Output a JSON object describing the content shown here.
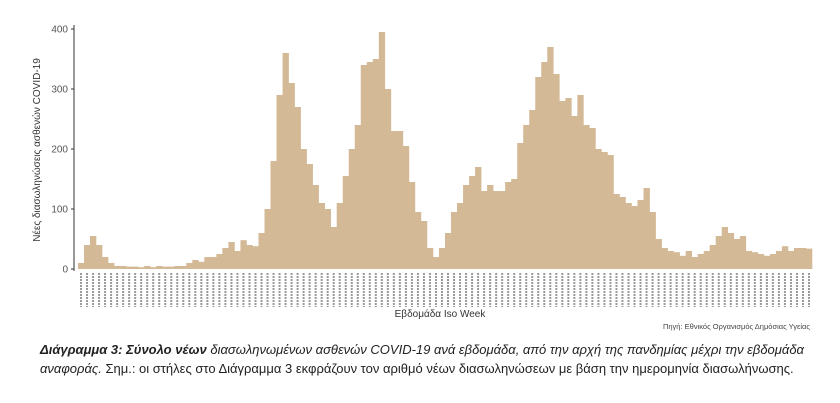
{
  "chart_data": {
    "type": "bar",
    "xlabel": "Εβδομάδα Iso Week",
    "ylabel": "Νέες διασωληνώσεις ασθενών COVID-19",
    "ylim": [
      0,
      400
    ],
    "yticks": [
      0,
      100,
      200,
      300,
      400
    ],
    "grid": false,
    "bar_color": "#d4b996",
    "values": [
      10,
      40,
      55,
      40,
      20,
      10,
      5,
      5,
      4,
      4,
      3,
      5,
      3,
      5,
      4,
      4,
      5,
      5,
      10,
      15,
      12,
      20,
      20,
      25,
      35,
      45,
      30,
      48,
      40,
      38,
      60,
      100,
      180,
      290,
      360,
      310,
      270,
      200,
      175,
      140,
      110,
      100,
      70,
      110,
      155,
      200,
      240,
      340,
      345,
      350,
      395,
      300,
      230,
      230,
      205,
      145,
      95,
      80,
      35,
      20,
      35,
      60,
      95,
      110,
      140,
      155,
      170,
      130,
      140,
      130,
      130,
      145,
      150,
      210,
      240,
      265,
      320,
      345,
      370,
      325,
      280,
      285,
      255,
      290,
      240,
      235,
      200,
      195,
      190,
      125,
      120,
      110,
      105,
      115,
      135,
      95,
      50,
      35,
      30,
      28,
      22,
      30,
      20,
      25,
      30,
      40,
      55,
      70,
      60,
      50,
      55,
      30,
      28,
      25,
      22,
      25,
      30,
      38,
      30,
      35,
      35,
      34
    ]
  },
  "source": "Πηγή: Εθνικός Οργανισμός Δημόσιας Υγείας",
  "caption": {
    "label": "Διάγραμμα 3: Σύνολο νέων",
    "text1": " διασωληνωμένων ασθενών COVID-19 ανά εβδομάδα, από την αρχή της πανδημίας μέχρι την εβδομάδα αναφοράς.",
    "text2": "  Σημ.: οι στήλες στο Διάγραμμα 3 εκφράζουν τον αριθμό νέων διασωληνώσεων με βάση την ημερομηνία διασωλήνωσης."
  }
}
